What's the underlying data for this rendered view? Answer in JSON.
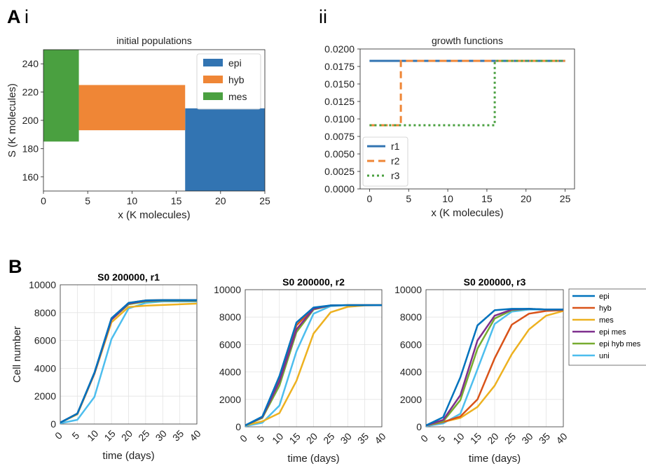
{
  "panel_labels": {
    "a": "A",
    "a_i": "i",
    "a_ii": "ii",
    "b": "B"
  },
  "colors": {
    "epi": "#3274b2",
    "hyb": "#ef8636",
    "mes": "#4aa040",
    "matlab_blue": "#0072bd",
    "matlab_orange": "#d95319",
    "matlab_yellow": "#edb120",
    "matlab_purple": "#7e2f8e",
    "matlab_green": "#77ac30",
    "matlab_cyan": "#4dbeee"
  },
  "chart_data": [
    {
      "id": "initial_populations",
      "type": "bar",
      "title": "initial populations",
      "xlabel": "x (K molecules)",
      "ylabel": "S (K molecules)",
      "xlim": [
        0,
        25
      ],
      "ylim": [
        150,
        250
      ],
      "xticks": [
        "0",
        "5",
        "10",
        "15",
        "20",
        "25"
      ],
      "yticks": [
        "160",
        "180",
        "200",
        "220",
        "240"
      ],
      "grid": false,
      "legend_position": "top-right",
      "rects": [
        {
          "name": "epi",
          "x0": 16,
          "x1": 25,
          "y0": 150,
          "y1": 208.5
        },
        {
          "name": "hyb",
          "x0": 4,
          "x1": 16,
          "y0": 193,
          "y1": 225
        },
        {
          "name": "mes",
          "x0": 0,
          "x1": 4,
          "y0": 185,
          "y1": 250
        }
      ],
      "legend": [
        "epi",
        "hyb",
        "mes"
      ]
    },
    {
      "id": "growth_functions",
      "type": "line",
      "title": "growth functions",
      "xlabel": "x (K molecules)",
      "ylabel": "",
      "xlim": [
        -1.2,
        26.2
      ],
      "ylim": [
        0,
        0.02
      ],
      "xticks": [
        "0",
        "5",
        "10",
        "15",
        "20",
        "25"
      ],
      "yticks": [
        "0.0000",
        "0.0025",
        "0.0050",
        "0.0075",
        "0.0100",
        "0.0125",
        "0.0150",
        "0.0175",
        "0.0200"
      ],
      "grid": false,
      "legend_position": "bottom-left",
      "series": [
        {
          "name": "r1",
          "style": "solid",
          "x": [
            0,
            25
          ],
          "y": [
            0.0183,
            0.0183
          ]
        },
        {
          "name": "r2",
          "style": "dashed",
          "x": [
            0,
            4,
            4,
            25
          ],
          "y": [
            0.0091,
            0.0091,
            0.0183,
            0.0183
          ]
        },
        {
          "name": "r3",
          "style": "dotted",
          "x": [
            0,
            16,
            16,
            25
          ],
          "y": [
            0.0091,
            0.0091,
            0.0183,
            0.0183
          ]
        }
      ]
    },
    {
      "id": "b_r1",
      "type": "line",
      "title": "S0 200000, r1",
      "xlabel": "time (days)",
      "ylabel": "Cell number",
      "xlim": [
        0,
        40
      ],
      "ylim": [
        0,
        10000
      ],
      "xticks": [
        "0",
        "5",
        "10",
        "15",
        "20",
        "25",
        "30",
        "35",
        "40"
      ],
      "yticks": [
        "0",
        "2000",
        "4000",
        "6000",
        "8000",
        "10000"
      ],
      "grid": true,
      "x": [
        0,
        5,
        10,
        15,
        20,
        25,
        30,
        35,
        40
      ],
      "series": [
        {
          "name": "epi",
          "values": [
            100,
            750,
            3700,
            7600,
            8700,
            8880,
            8900,
            8900,
            8900
          ]
        },
        {
          "name": "hyb",
          "values": [
            100,
            750,
            3650,
            7550,
            8700,
            8880,
            8900,
            8900,
            8900
          ]
        },
        {
          "name": "mes",
          "values": [
            100,
            700,
            3600,
            7300,
            8400,
            8500,
            8550,
            8600,
            8650
          ]
        },
        {
          "name": "epi mes",
          "values": [
            100,
            750,
            3650,
            7500,
            8650,
            8850,
            8880,
            8880,
            8880
          ]
        },
        {
          "name": "epi hyb mes",
          "values": [
            100,
            750,
            3650,
            7500,
            8600,
            8800,
            8850,
            8850,
            8850
          ]
        },
        {
          "name": "uni",
          "values": [
            50,
            300,
            1950,
            6100,
            8300,
            8700,
            8800,
            8800,
            8800
          ]
        }
      ]
    },
    {
      "id": "b_r2",
      "type": "line",
      "title": "S0 200000, r2",
      "xlabel": "time (days)",
      "ylabel": "",
      "xlim": [
        0,
        40
      ],
      "ylim": [
        0,
        10000
      ],
      "xticks": [
        "0",
        "5",
        "10",
        "15",
        "20",
        "25",
        "30",
        "35",
        "40"
      ],
      "yticks": [
        "0",
        "2000",
        "4000",
        "6000",
        "8000",
        "10000"
      ],
      "grid": true,
      "x": [
        0,
        5,
        10,
        15,
        20,
        25,
        30,
        35,
        40
      ],
      "series": [
        {
          "name": "epi",
          "values": [
            100,
            750,
            3700,
            7600,
            8700,
            8850,
            8870,
            8870,
            8870
          ]
        },
        {
          "name": "hyb",
          "values": [
            100,
            700,
            3500,
            7400,
            8650,
            8850,
            8870,
            8870,
            8870
          ]
        },
        {
          "name": "mes",
          "values": [
            100,
            400,
            1000,
            3350,
            6800,
            8350,
            8750,
            8850,
            8870
          ]
        },
        {
          "name": "epi mes",
          "values": [
            100,
            700,
            3300,
            7100,
            8600,
            8850,
            8870,
            8870,
            8870
          ]
        },
        {
          "name": "epi hyb mes",
          "values": [
            100,
            650,
            3000,
            6900,
            8550,
            8850,
            8870,
            8870,
            8870
          ]
        },
        {
          "name": "uni",
          "values": [
            50,
            300,
            1550,
            5500,
            8250,
            8800,
            8870,
            8870,
            8870
          ]
        }
      ]
    },
    {
      "id": "b_r3",
      "type": "line",
      "title": "S0 200000, r3",
      "xlabel": "time (days)",
      "ylabel": "",
      "xlim": [
        0,
        40
      ],
      "ylim": [
        0,
        10000
      ],
      "xticks": [
        "0",
        "5",
        "10",
        "15",
        "20",
        "25",
        "30",
        "35",
        "40"
      ],
      "yticks": [
        "0",
        "2000",
        "4000",
        "6000",
        "8000",
        "10000"
      ],
      "grid": true,
      "legend_position": "outside-right",
      "x": [
        0,
        5,
        10,
        15,
        20,
        25,
        30,
        35,
        40
      ],
      "series": [
        {
          "name": "epi",
          "values": [
            100,
            700,
            3600,
            7400,
            8500,
            8600,
            8600,
            8550,
            8550
          ]
        },
        {
          "name": "hyb",
          "values": [
            100,
            350,
            750,
            2000,
            5000,
            7450,
            8250,
            8450,
            8500
          ]
        },
        {
          "name": "mes",
          "values": [
            100,
            350,
            650,
            1450,
            3000,
            5300,
            7100,
            8100,
            8450
          ]
        },
        {
          "name": "epi mes",
          "values": [
            100,
            500,
            2300,
            6300,
            8100,
            8550,
            8600,
            8550,
            8550
          ]
        },
        {
          "name": "epi hyb mes",
          "values": [
            100,
            400,
            1950,
            5700,
            7900,
            8500,
            8600,
            8550,
            8550
          ]
        },
        {
          "name": "uni",
          "values": [
            50,
            250,
            950,
            4200,
            7500,
            8400,
            8550,
            8550,
            8550
          ]
        }
      ]
    }
  ]
}
